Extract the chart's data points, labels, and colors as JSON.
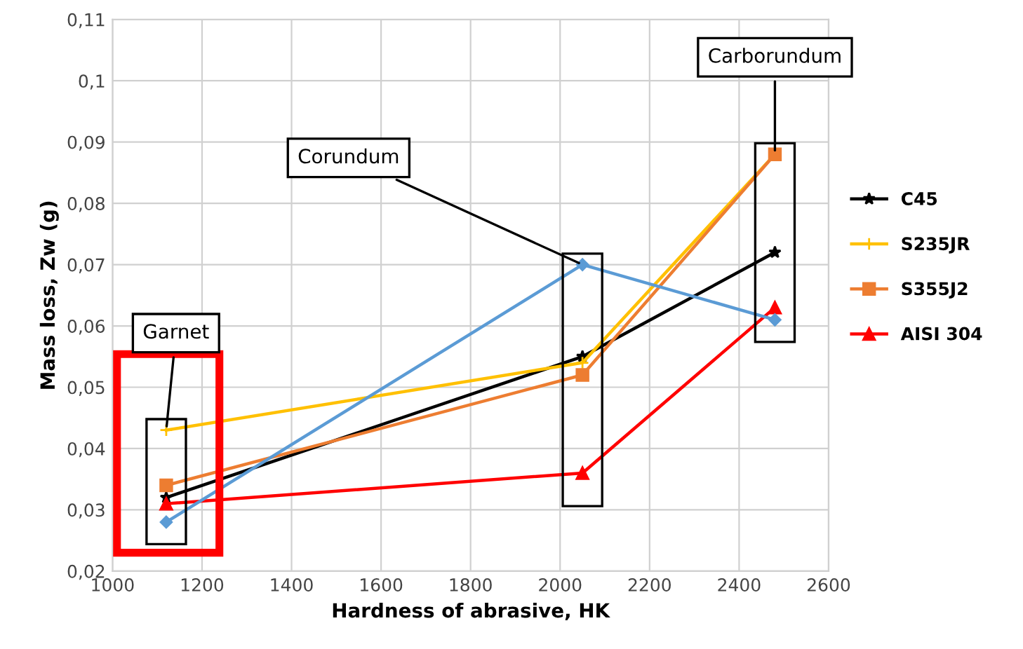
{
  "chart_data": {
    "type": "line",
    "xlabel": "Hardness of abrasive, HK",
    "ylabel": "Mass loss, Zw (g)",
    "x": [
      1120,
      2050,
      2480
    ],
    "series": [
      {
        "name": "C45",
        "color": "#000000",
        "marker": "star",
        "values": [
          0.032,
          0.055,
          0.072
        ]
      },
      {
        "name": "S235JR",
        "color": "#ffc000",
        "marker": "cross",
        "values": [
          0.043,
          0.054,
          0.088
        ]
      },
      {
        "name": "S355J2",
        "color": "#ed7d31",
        "marker": "square",
        "values": [
          0.034,
          0.052,
          0.088
        ]
      },
      {
        "name": "AISI 304",
        "color": "#ff0000",
        "marker": "triangle",
        "values": [
          0.031,
          0.036,
          0.063
        ]
      },
      {
        "color": "#5b9bd5",
        "marker": "diamond",
        "values": [
          0.028,
          0.07,
          0.061
        ]
      }
    ],
    "annotations": [
      {
        "text": "Garnet",
        "x": 1120,
        "y": 0.043
      },
      {
        "text": "Corundum",
        "x": 2050,
        "y": 0.07
      },
      {
        "text": "Carborundum",
        "x": 2480,
        "y": 0.088
      }
    ],
    "xlim": [
      1000,
      2600
    ],
    "xticks": [
      1000,
      1200,
      1400,
      1600,
      1800,
      2000,
      2200,
      2400,
      2600
    ],
    "ylim": [
      0.02,
      0.11
    ],
    "yticks": [
      {
        "value": 0.02,
        "label": "0,02"
      },
      {
        "value": 0.03,
        "label": "0,03"
      },
      {
        "value": 0.04,
        "label": "0,04"
      },
      {
        "value": 0.05,
        "label": "0,05"
      },
      {
        "value": 0.06,
        "label": "0,06"
      },
      {
        "value": 0.07,
        "label": "0,07"
      },
      {
        "value": 0.08,
        "label": "0,08"
      },
      {
        "value": 0.09,
        "label": "0,09"
      },
      {
        "value": 0.1,
        "label": "0,1"
      },
      {
        "value": 0.11,
        "label": "0,11"
      }
    ],
    "grid": true,
    "legend": "right",
    "line_style": "solid"
  }
}
